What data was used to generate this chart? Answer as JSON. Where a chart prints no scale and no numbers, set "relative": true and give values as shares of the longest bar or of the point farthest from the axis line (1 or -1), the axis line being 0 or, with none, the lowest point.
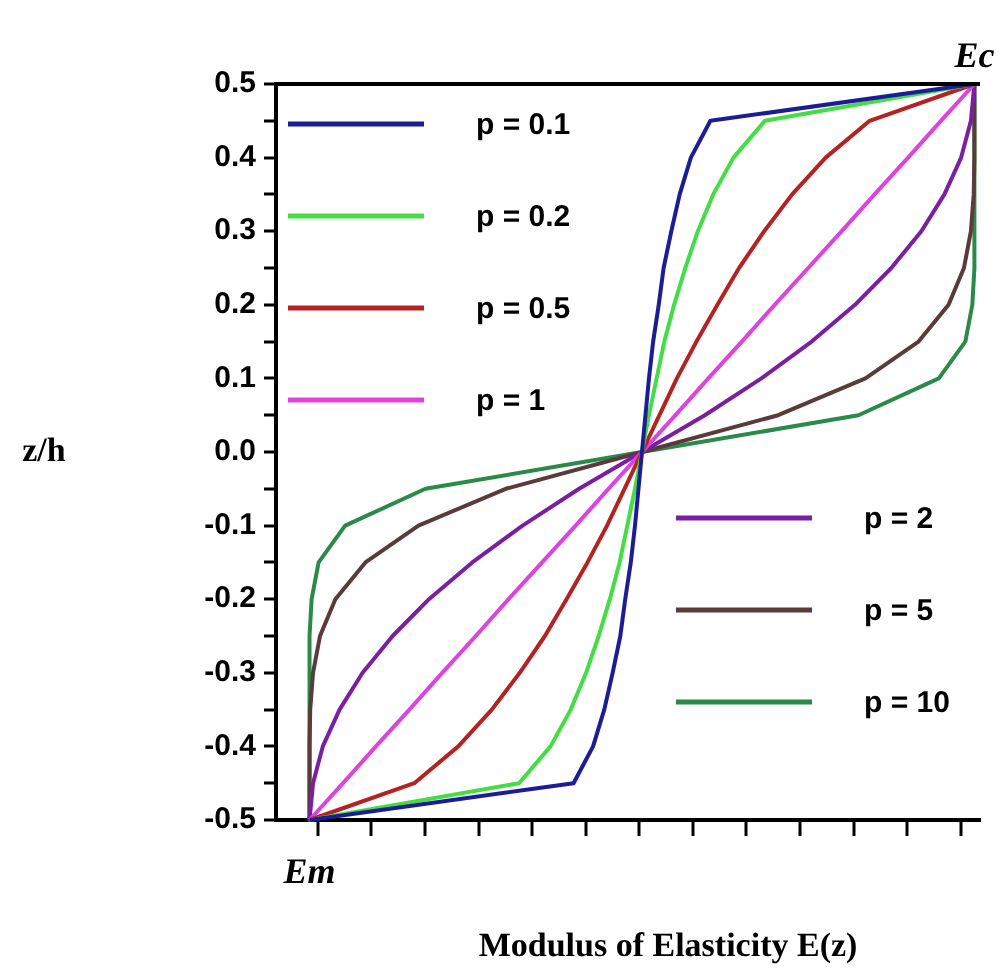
{
  "chart_data": {
    "type": "line",
    "orientation": "horizontal",
    "relative": true,
    "xlabel": "Modulus of Elasticity E(z)",
    "ylabel": "z/h",
    "categories": [
      "0.5",
      null,
      "0.4",
      null,
      "0.3",
      null,
      "0.2",
      null,
      "0.1",
      null,
      "0.0",
      null,
      "-0.1",
      null,
      "-0.2",
      null,
      "-0.3",
      null,
      "-0.4",
      null,
      "-0.5"
    ],
    "grid": false,
    "legend": "top left",
    "marker": "none",
    "line_style": "solid",
    "annotations": [
      "Em",
      "Ec"
    ],
    "series": [
      {
        "name": "p = 0.1",
        "color": "#1c1c96",
        "values": [
          1,
          0.622,
          0.594,
          0.578,
          0.566,
          0.555,
          0.548,
          0.54,
          0.534,
          0.529,
          0.524,
          0.519,
          0.514,
          0.508,
          0.5,
          0.493,
          0.482,
          0.47,
          0.454,
          0.426,
          0.048
        ]
      },
      {
        "name": "p = 0.2",
        "color": "#44dd44",
        "values": [
          1,
          0.7,
          0.655,
          0.626,
          0.604,
          0.586,
          0.57,
          0.556,
          0.545,
          0.534,
          0.524,
          0.514,
          0.503,
          0.492,
          0.478,
          0.462,
          0.444,
          0.422,
          0.393,
          0.348,
          0.048
        ]
      },
      {
        "name": "p = 0.5",
        "color": "#b42222",
        "values": [
          1,
          0.85,
          0.787,
          0.739,
          0.699,
          0.663,
          0.632,
          0.602,
          0.574,
          0.549,
          0.524,
          0.499,
          0.474,
          0.446,
          0.416,
          0.385,
          0.349,
          0.309,
          0.261,
          0.198,
          0.048
        ]
      },
      {
        "name": "p = 1",
        "color": "#dd44dd",
        "values": [
          1,
          0.952,
          0.905,
          0.857,
          0.81,
          0.762,
          0.714,
          0.667,
          0.619,
          0.572,
          0.524,
          0.476,
          0.429,
          0.381,
          0.333,
          0.286,
          0.238,
          0.191,
          0.143,
          0.096,
          0.048
        ]
      },
      {
        "name": "p = 2",
        "color": "#7a1fa2",
        "values": [
          1,
          0.995,
          0.981,
          0.957,
          0.924,
          0.881,
          0.829,
          0.767,
          0.695,
          0.614,
          0.524,
          0.434,
          0.353,
          0.281,
          0.219,
          0.167,
          0.124,
          0.091,
          0.067,
          0.053,
          0.048
        ]
      },
      {
        "name": "p = 5",
        "color": "#5a3a3a",
        "values": [
          1,
          1,
          1,
          0.999,
          0.995,
          0.985,
          0.963,
          0.92,
          0.844,
          0.719,
          0.524,
          0.329,
          0.204,
          0.128,
          0.085,
          0.063,
          0.053,
          0.049,
          0.048,
          0.048,
          0.048
        ]
      },
      {
        "name": "p = 10",
        "color": "#2a8a4a",
        "values": [
          1,
          1,
          1,
          1,
          1,
          1,
          0.997,
          0.987,
          0.949,
          0.834,
          0.524,
          0.214,
          0.099,
          0.061,
          0.051,
          0.048,
          0.048,
          0.048,
          0.048,
          0.048,
          0.048
        ]
      }
    ]
  }
}
